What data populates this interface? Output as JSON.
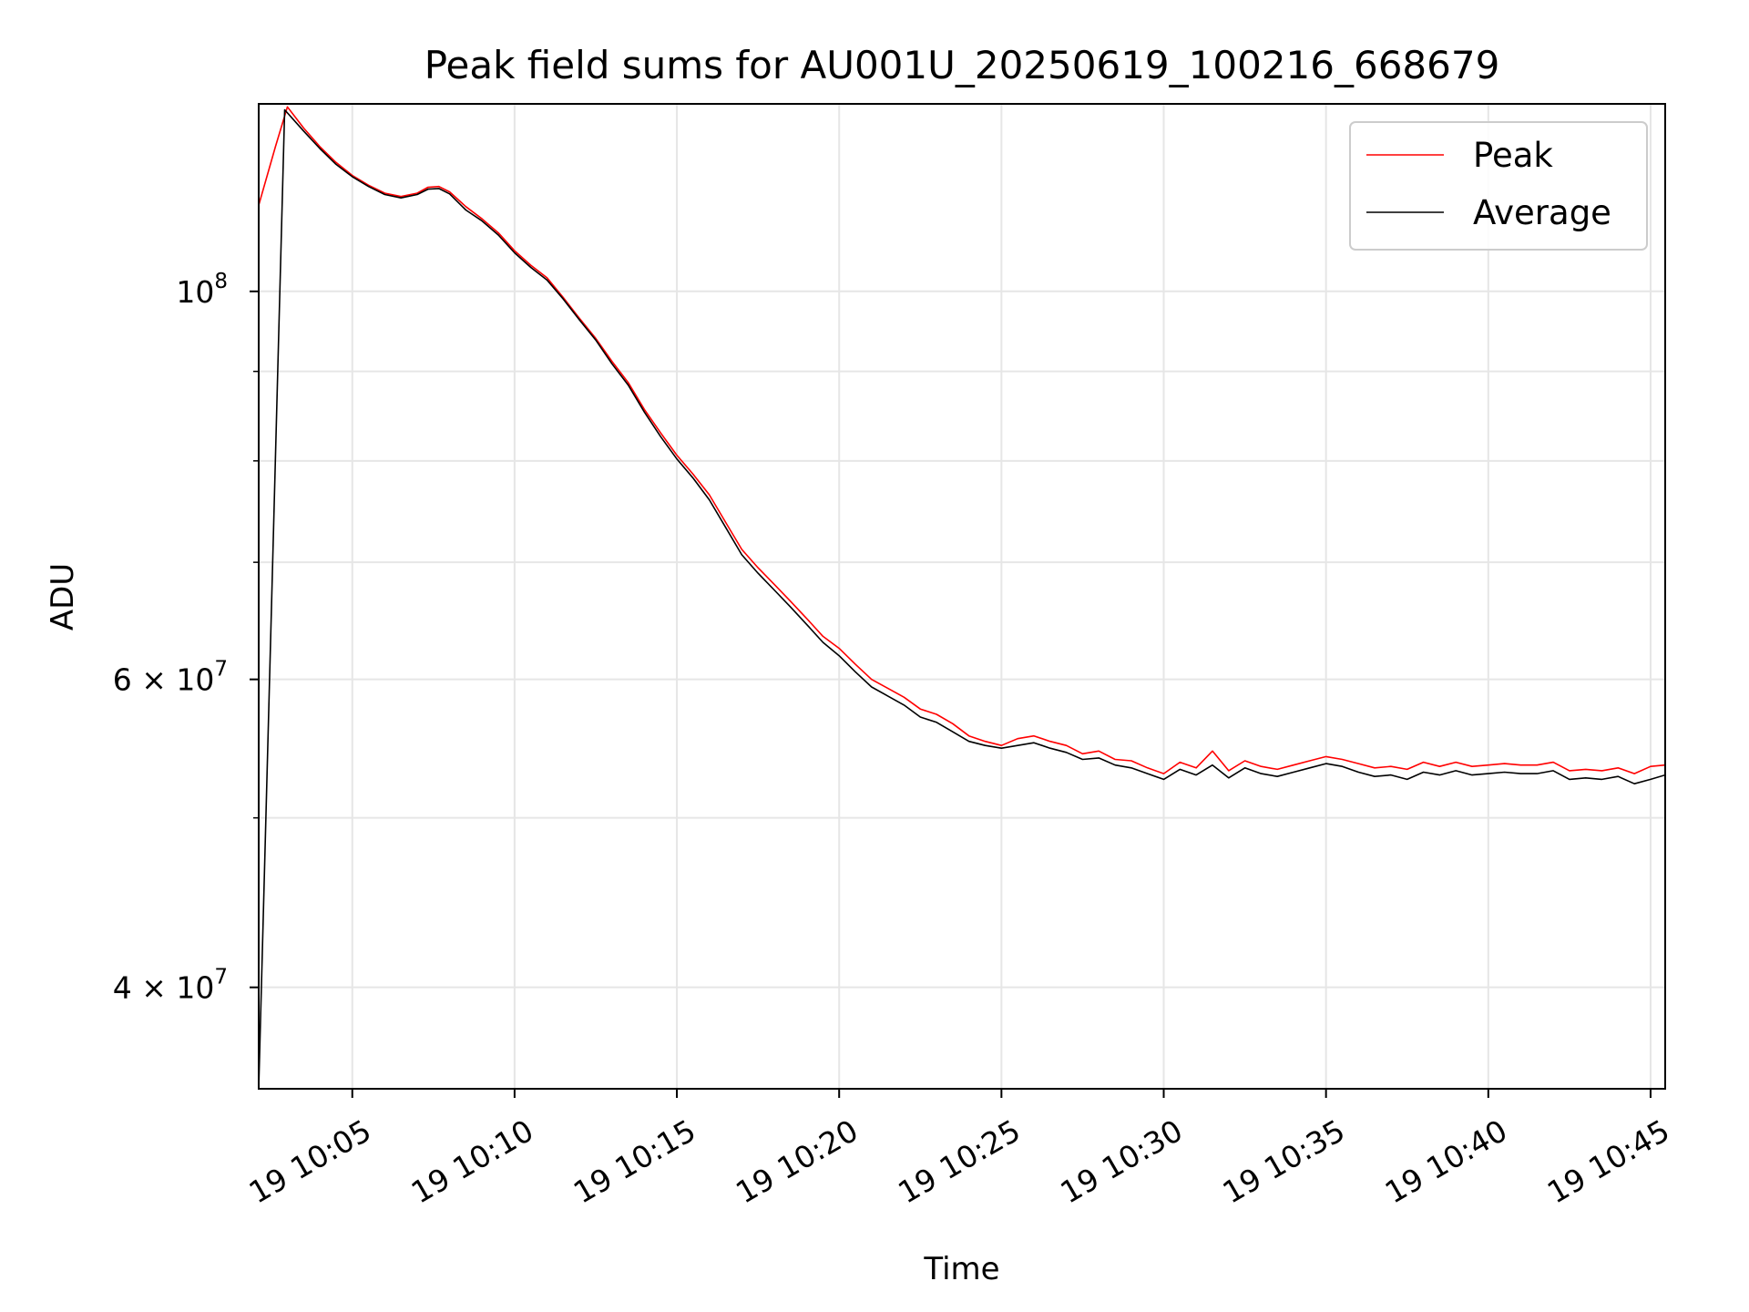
{
  "chart_data": {
    "type": "line",
    "title": "Peak field sums for AU001U_20250619_100216_668679",
    "xlabel": "Time",
    "ylabel": "ADU",
    "yscale": "log",
    "grid": true,
    "legend_position": "top-right",
    "xlim": [
      "19 10:02:07",
      "19 10:45:27"
    ],
    "ylim": [
      35000000,
      128000000
    ],
    "x_ticks": [
      {
        "x": "19 10:05:00",
        "label": "19 10:05"
      },
      {
        "x": "19 10:10:00",
        "label": "19 10:10"
      },
      {
        "x": "19 10:15:00",
        "label": "19 10:15"
      },
      {
        "x": "19 10:20:00",
        "label": "19 10:20"
      },
      {
        "x": "19 10:25:00",
        "label": "19 10:25"
      },
      {
        "x": "19 10:30:00",
        "label": "19 10:30"
      },
      {
        "x": "19 10:35:00",
        "label": "19 10:35"
      },
      {
        "x": "19 10:40:00",
        "label": "19 10:40"
      },
      {
        "x": "19 10:45:00",
        "label": "19 10:45"
      }
    ],
    "y_major_ticks": [
      {
        "value": 100000000,
        "base": "10",
        "exp": "8"
      },
      {
        "value": 60000000,
        "base": "6 × 10",
        "exp": "7"
      },
      {
        "value": 40000000,
        "base": "4 × 10",
        "exp": "7"
      }
    ],
    "y_minor_ticks": [
      90000000,
      80000000,
      70000000,
      50000000
    ],
    "series": [
      {
        "name": "Peak",
        "color": "#ff0000",
        "points": [
          [
            "19 10:02:07",
            112000000
          ],
          [
            "19 10:02:38",
            121000000
          ],
          [
            "19 10:03:00",
            127500000
          ],
          [
            "19 10:03:30",
            124000000
          ],
          [
            "19 10:04:00",
            121000000
          ],
          [
            "19 10:04:30",
            118500000
          ],
          [
            "19 10:05:00",
            116500000
          ],
          [
            "19 10:05:30",
            115000000
          ],
          [
            "19 10:06:00",
            113800000
          ],
          [
            "19 10:06:30",
            113300000
          ],
          [
            "19 10:07:00",
            113800000
          ],
          [
            "19 10:07:20",
            114700000
          ],
          [
            "19 10:07:40",
            114800000
          ],
          [
            "19 10:08:00",
            114000000
          ],
          [
            "19 10:08:30",
            111800000
          ],
          [
            "19 10:09:00",
            110000000
          ],
          [
            "19 10:09:30",
            108000000
          ],
          [
            "19 10:10:00",
            105500000
          ],
          [
            "19 10:10:30",
            103500000
          ],
          [
            "19 10:11:00",
            101800000
          ],
          [
            "19 10:11:30",
            99200000
          ],
          [
            "19 10:12:00",
            96500000
          ],
          [
            "19 10:12:30",
            94000000
          ],
          [
            "19 10:13:00",
            91200000
          ],
          [
            "19 10:13:30",
            88700000
          ],
          [
            "19 10:14:00",
            85600000
          ],
          [
            "19 10:14:30",
            83000000
          ],
          [
            "19 10:15:00",
            80600000
          ],
          [
            "19 10:15:30",
            78600000
          ],
          [
            "19 10:16:00",
            76500000
          ],
          [
            "19 10:16:30",
            73800000
          ],
          [
            "19 10:17:00",
            71200000
          ],
          [
            "19 10:17:30",
            69500000
          ],
          [
            "19 10:18:00",
            68000000
          ],
          [
            "19 10:18:30",
            66500000
          ],
          [
            "19 10:19:00",
            65000000
          ],
          [
            "19 10:19:30",
            63500000
          ],
          [
            "19 10:20:00",
            62500000
          ],
          [
            "19 10:20:30",
            61200000
          ],
          [
            "19 10:21:00",
            60000000
          ],
          [
            "19 10:21:30",
            59300000
          ],
          [
            "19 10:22:00",
            58600000
          ],
          [
            "19 10:22:30",
            57700000
          ],
          [
            "19 10:23:00",
            57300000
          ],
          [
            "19 10:23:30",
            56600000
          ],
          [
            "19 10:24:00",
            55700000
          ],
          [
            "19 10:24:30",
            55300000
          ],
          [
            "19 10:25:00",
            55000000
          ],
          [
            "19 10:25:30",
            55500000
          ],
          [
            "19 10:26:00",
            55700000
          ],
          [
            "19 10:26:30",
            55300000
          ],
          [
            "19 10:27:00",
            55000000
          ],
          [
            "19 10:27:30",
            54400000
          ],
          [
            "19 10:28:00",
            54600000
          ],
          [
            "19 10:28:30",
            54000000
          ],
          [
            "19 10:29:00",
            53900000
          ],
          [
            "19 10:29:30",
            53400000
          ],
          [
            "19 10:30:00",
            53000000
          ],
          [
            "19 10:30:30",
            53800000
          ],
          [
            "19 10:31:00",
            53400000
          ],
          [
            "19 10:31:30",
            54600000
          ],
          [
            "19 10:32:00",
            53200000
          ],
          [
            "19 10:32:30",
            53900000
          ],
          [
            "19 10:33:00",
            53500000
          ],
          [
            "19 10:33:30",
            53300000
          ],
          [
            "19 10:34:00",
            53600000
          ],
          [
            "19 10:34:30",
            53900000
          ],
          [
            "19 10:35:00",
            54200000
          ],
          [
            "19 10:35:30",
            54000000
          ],
          [
            "19 10:36:00",
            53700000
          ],
          [
            "19 10:36:30",
            53400000
          ],
          [
            "19 10:37:00",
            53500000
          ],
          [
            "19 10:37:30",
            53300000
          ],
          [
            "19 10:38:00",
            53800000
          ],
          [
            "19 10:38:30",
            53500000
          ],
          [
            "19 10:39:00",
            53800000
          ],
          [
            "19 10:39:30",
            53500000
          ],
          [
            "19 10:40:00",
            53600000
          ],
          [
            "19 10:40:30",
            53700000
          ],
          [
            "19 10:41:00",
            53600000
          ],
          [
            "19 10:41:30",
            53600000
          ],
          [
            "19 10:42:00",
            53800000
          ],
          [
            "19 10:42:30",
            53200000
          ],
          [
            "19 10:43:00",
            53300000
          ],
          [
            "19 10:43:30",
            53200000
          ],
          [
            "19 10:44:00",
            53400000
          ],
          [
            "19 10:44:30",
            53000000
          ],
          [
            "19 10:45:00",
            53500000
          ],
          [
            "19 10:45:27",
            53600000
          ]
        ]
      },
      {
        "name": "Average",
        "color": "#000000",
        "points": [
          [
            "19 10:02:07",
            35000000
          ],
          [
            "19 10:02:55",
            127000000
          ],
          [
            "19 10:03:30",
            123500000
          ],
          [
            "19 10:04:00",
            120700000
          ],
          [
            "19 10:04:30",
            118200000
          ],
          [
            "19 10:05:00",
            116300000
          ],
          [
            "19 10:05:30",
            114800000
          ],
          [
            "19 10:06:00",
            113600000
          ],
          [
            "19 10:06:30",
            113100000
          ],
          [
            "19 10:07:00",
            113600000
          ],
          [
            "19 10:07:20",
            114400000
          ],
          [
            "19 10:07:40",
            114500000
          ],
          [
            "19 10:08:00",
            113700000
          ],
          [
            "19 10:08:30",
            111300000
          ],
          [
            "19 10:09:00",
            109700000
          ],
          [
            "19 10:09:30",
            107700000
          ],
          [
            "19 10:10:00",
            105200000
          ],
          [
            "19 10:10:30",
            103200000
          ],
          [
            "19 10:11:00",
            101500000
          ],
          [
            "19 10:11:30",
            99000000
          ],
          [
            "19 10:12:00",
            96300000
          ],
          [
            "19 10:12:30",
            93800000
          ],
          [
            "19 10:13:00",
            90900000
          ],
          [
            "19 10:13:30",
            88400000
          ],
          [
            "19 10:14:00",
            85300000
          ],
          [
            "19 10:14:30",
            82600000
          ],
          [
            "19 10:15:00",
            80200000
          ],
          [
            "19 10:15:30",
            78200000
          ],
          [
            "19 10:16:00",
            76000000
          ],
          [
            "19 10:16:30",
            73300000
          ],
          [
            "19 10:17:00",
            70700000
          ],
          [
            "19 10:17:30",
            69000000
          ],
          [
            "19 10:18:00",
            67500000
          ],
          [
            "19 10:18:30",
            66000000
          ],
          [
            "19 10:19:00",
            64500000
          ],
          [
            "19 10:19:30",
            63000000
          ],
          [
            "19 10:20:00",
            61900000
          ],
          [
            "19 10:20:30",
            60600000
          ],
          [
            "19 10:21:00",
            59400000
          ],
          [
            "19 10:21:30",
            58700000
          ],
          [
            "19 10:22:00",
            58000000
          ],
          [
            "19 10:22:30",
            57100000
          ],
          [
            "19 10:23:00",
            56700000
          ],
          [
            "19 10:23:30",
            56000000
          ],
          [
            "19 10:24:00",
            55300000
          ],
          [
            "19 10:24:30",
            55000000
          ],
          [
            "19 10:25:00",
            54800000
          ],
          [
            "19 10:25:30",
            55000000
          ],
          [
            "19 10:26:00",
            55200000
          ],
          [
            "19 10:26:30",
            54800000
          ],
          [
            "19 10:27:00",
            54500000
          ],
          [
            "19 10:27:30",
            54000000
          ],
          [
            "19 10:28:00",
            54100000
          ],
          [
            "19 10:28:30",
            53600000
          ],
          [
            "19 10:29:00",
            53400000
          ],
          [
            "19 10:29:30",
            53000000
          ],
          [
            "19 10:30:00",
            52600000
          ],
          [
            "19 10:30:30",
            53300000
          ],
          [
            "19 10:31:00",
            52900000
          ],
          [
            "19 10:31:30",
            53600000
          ],
          [
            "19 10:32:00",
            52700000
          ],
          [
            "19 10:32:30",
            53400000
          ],
          [
            "19 10:33:00",
            53000000
          ],
          [
            "19 10:33:30",
            52800000
          ],
          [
            "19 10:34:00",
            53100000
          ],
          [
            "19 10:34:30",
            53400000
          ],
          [
            "19 10:35:00",
            53700000
          ],
          [
            "19 10:35:30",
            53500000
          ],
          [
            "19 10:36:00",
            53100000
          ],
          [
            "19 10:36:30",
            52800000
          ],
          [
            "19 10:37:00",
            52900000
          ],
          [
            "19 10:37:30",
            52600000
          ],
          [
            "19 10:38:00",
            53100000
          ],
          [
            "19 10:38:30",
            52900000
          ],
          [
            "19 10:39:00",
            53200000
          ],
          [
            "19 10:39:30",
            52900000
          ],
          [
            "19 10:40:00",
            53000000
          ],
          [
            "19 10:40:30",
            53100000
          ],
          [
            "19 10:41:00",
            53000000
          ],
          [
            "19 10:41:30",
            53000000
          ],
          [
            "19 10:42:00",
            53200000
          ],
          [
            "19 10:42:30",
            52600000
          ],
          [
            "19 10:43:00",
            52700000
          ],
          [
            "19 10:43:30",
            52600000
          ],
          [
            "19 10:44:00",
            52800000
          ],
          [
            "19 10:44:30",
            52300000
          ],
          [
            "19 10:45:00",
            52600000
          ],
          [
            "19 10:45:27",
            52900000
          ]
        ]
      }
    ]
  }
}
